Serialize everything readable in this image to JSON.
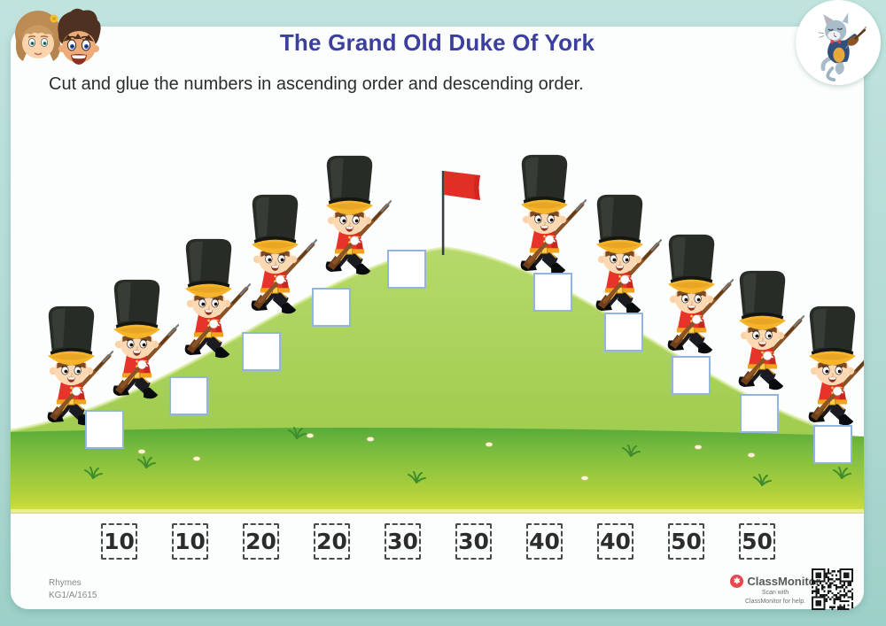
{
  "header": {
    "title": "The Grand Old Duke Of York",
    "instruction": "Cut and glue the numbers in ascending order and descending order."
  },
  "scene": {
    "soldier_count": 10,
    "glue_box_count": 10
  },
  "tiles": {
    "values": [
      "10",
      "10",
      "20",
      "20",
      "30",
      "30",
      "40",
      "40",
      "50",
      "50"
    ]
  },
  "footer": {
    "category": "Rhymes",
    "code": "KG1/A/1615",
    "brand": "ClassMonitor",
    "scan_line1": "Scan with",
    "scan_line2": "ClassMonitor for help."
  },
  "colors": {
    "page_background": "#aed8d2",
    "card_background": "#fcfefd",
    "title": "#3b3f9e",
    "hill_green": "#a5ce52",
    "field_green": "#68b23d",
    "field_yellow": "#dde53b",
    "flag_red": "#e22f26",
    "soldier_jacket": "#e7342a",
    "box_border": "#92b4dd"
  }
}
